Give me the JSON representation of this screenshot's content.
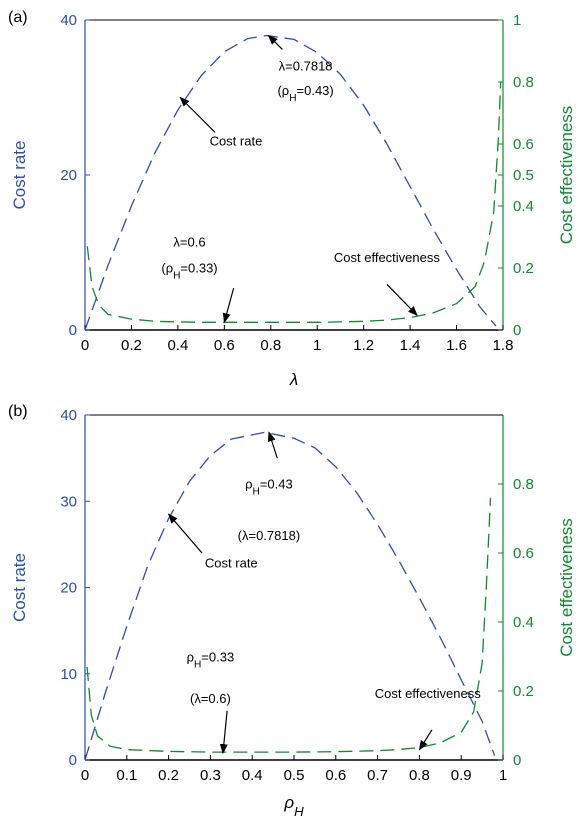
{
  "colors": {
    "left_axis": "#2e4ea8",
    "right_axis": "#0f8a2e",
    "frame": "#000000",
    "bottom_axis": "#000000"
  },
  "chart_data": [
    {
      "panel": "(a)",
      "type": "line",
      "grid": false,
      "xlabel": "λ",
      "ylabel": "Cost rate",
      "y2label": "Cost effectiveness",
      "xlim": [
        0,
        1.8
      ],
      "ylim": [
        0,
        40
      ],
      "y2lim": [
        0,
        1
      ],
      "xticks": [
        "0",
        "0.2",
        "0.4",
        "0.6",
        "0.8",
        "1",
        "1.2",
        "1.4",
        "1.6",
        "1.8"
      ],
      "xtick_values": [
        0,
        0.2,
        0.4,
        0.6,
        0.8,
        1,
        1.2,
        1.4,
        1.6,
        1.8
      ],
      "yticks": [
        "0",
        "20",
        "40"
      ],
      "ytick_values": [
        0,
        20,
        40
      ],
      "y2ticks": [
        "0",
        "0.2",
        "0.4",
        "0.5",
        "0.6",
        "0.8",
        "1"
      ],
      "y2tick_values": [
        0,
        0.2,
        0.4,
        0.5,
        0.6,
        0.8,
        1
      ],
      "series": [
        {
          "name": "Cost rate",
          "axis": "left",
          "color": "#2e4ea8",
          "style": "dashed",
          "x": [
            0,
            0.1,
            0.2,
            0.3,
            0.4,
            0.5,
            0.6,
            0.7,
            0.7818,
            0.9,
            1.0,
            1.1,
            1.2,
            1.3,
            1.4,
            1.5,
            1.6,
            1.7,
            1.77
          ],
          "y": [
            0,
            8.4,
            16.0,
            22.8,
            28.4,
            32.8,
            35.9,
            37.6,
            38.0,
            37.5,
            35.8,
            33.0,
            29.0,
            24.0,
            18.5,
            13.0,
            7.8,
            3.0,
            0.5
          ]
        },
        {
          "name": "Cost effectiveness",
          "axis": "right",
          "color": "#0f8a2e",
          "style": "dashed",
          "x": [
            0.01,
            0.03,
            0.06,
            0.1,
            0.2,
            0.3,
            0.4,
            0.5,
            0.6,
            0.7,
            0.8,
            0.9,
            1.0,
            1.1,
            1.2,
            1.3,
            1.4,
            1.5,
            1.6,
            1.68,
            1.72,
            1.76,
            1.78,
            1.79
          ],
          "y": [
            0.27,
            0.14,
            0.08,
            0.05,
            0.035,
            0.028,
            0.026,
            0.025,
            0.025,
            0.025,
            0.025,
            0.025,
            0.025,
            0.026,
            0.028,
            0.032,
            0.04,
            0.055,
            0.085,
            0.14,
            0.22,
            0.38,
            0.62,
            0.8
          ]
        }
      ],
      "annotations": [
        {
          "lines": [
            "λ=0.7818",
            "(ρ_H=0.43)"
          ],
          "text_x": 0.95,
          "text_y": 33.5,
          "text_y2": 30.3,
          "arrow_from": [
            0.85,
            36.2
          ],
          "arrow_to": [
            0.79,
            38.0
          ],
          "axis": "left"
        },
        {
          "lines": [
            "Cost rate"
          ],
          "text_x": 0.65,
          "text_y": 23.8,
          "arrow_from": [
            0.56,
            25.5
          ],
          "arrow_to": [
            0.41,
            30.0
          ],
          "axis": "left"
        },
        {
          "lines": [
            "λ=0.6",
            "(ρ_H=0.33)"
          ],
          "text_x": 0.45,
          "text_y": 10.8,
          "text_y2": 7.4,
          "arrow_from": [
            0.64,
            5.4
          ],
          "arrow_to": [
            0.6,
            1.0
          ],
          "axis": "left"
        },
        {
          "lines": [
            "Cost effectiveness"
          ],
          "text_x": 1.3,
          "text_y": 8.8,
          "arrow_from": [
            1.3,
            5.9
          ],
          "arrow_to": [
            1.43,
            1.9
          ],
          "axis": "left"
        }
      ]
    },
    {
      "panel": "(b)",
      "type": "line",
      "grid": false,
      "xlabel": "ρ_H",
      "ylabel": "Cost rate",
      "y2label": "Cost effectiveness",
      "xlim": [
        0,
        1
      ],
      "ylim": [
        0,
        40
      ],
      "y2lim": [
        0,
        1
      ],
      "xticks": [
        "0",
        "0.1",
        "0.2",
        "0.3",
        "0.4",
        "0.5",
        "0.6",
        "0.7",
        "0.8",
        "0.9",
        "1"
      ],
      "xtick_values": [
        0,
        0.1,
        0.2,
        0.3,
        0.4,
        0.5,
        0.6,
        0.7,
        0.8,
        0.9,
        1
      ],
      "yticks": [
        "0",
        "10",
        "20",
        "30",
        "40"
      ],
      "ytick_values": [
        0,
        10,
        20,
        30,
        40
      ],
      "y2ticks": [
        "0",
        "0.2",
        "0.4",
        "0.6",
        "0.8"
      ],
      "y2tick_values": [
        0,
        0.2,
        0.4,
        0.6,
        0.8
      ],
      "series": [
        {
          "name": "Cost rate",
          "axis": "left",
          "color": "#2e4ea8",
          "style": "dashed",
          "x": [
            0,
            0.05,
            0.1,
            0.15,
            0.2,
            0.25,
            0.3,
            0.35,
            0.43,
            0.5,
            0.55,
            0.6,
            0.65,
            0.7,
            0.75,
            0.8,
            0.85,
            0.9,
            0.95,
            0.98
          ],
          "y": [
            0,
            8.0,
            15.5,
            22.5,
            28.0,
            32.3,
            35.3,
            37.2,
            38.0,
            37.3,
            36.2,
            34.0,
            31.0,
            27.3,
            23.2,
            18.8,
            14.2,
            9.3,
            4.5,
            0.5
          ]
        },
        {
          "name": "Cost effectiveness",
          "axis": "right",
          "color": "#0f8a2e",
          "style": "dashed",
          "x": [
            0.005,
            0.015,
            0.03,
            0.06,
            0.1,
            0.2,
            0.3,
            0.4,
            0.5,
            0.6,
            0.7,
            0.75,
            0.8,
            0.85,
            0.9,
            0.93,
            0.95,
            0.96,
            0.97
          ],
          "y": [
            0.27,
            0.13,
            0.07,
            0.04,
            0.03,
            0.025,
            0.023,
            0.023,
            0.023,
            0.024,
            0.027,
            0.03,
            0.036,
            0.05,
            0.08,
            0.14,
            0.28,
            0.5,
            0.76
          ]
        }
      ],
      "annotations": [
        {
          "lines": [
            "ρ_H=0.43",
            "(λ=0.7818)"
          ],
          "text_x": 0.44,
          "text_y": 31.5,
          "text_y2": 25.5,
          "arrow_from": [
            0.46,
            35.0
          ],
          "arrow_to": [
            0.44,
            38.0
          ],
          "axis": "left"
        },
        {
          "lines": [
            "Cost rate"
          ],
          "text_x": 0.35,
          "text_y": 22.3,
          "arrow_from": [
            0.28,
            24.0
          ],
          "arrow_to": [
            0.2,
            28.5
          ],
          "axis": "left"
        },
        {
          "lines": [
            "ρ_H=0.33",
            "(λ=0.6)"
          ],
          "text_x": 0.3,
          "text_y": 11.4,
          "text_y2": 6.6,
          "arrow_from": [
            0.34,
            5.7
          ],
          "arrow_to": [
            0.33,
            0.8
          ],
          "axis": "left"
        },
        {
          "lines": [
            "Cost effectiveness"
          ],
          "text_x": 0.82,
          "text_y": 7.2,
          "arrow_from": [
            0.83,
            3.5
          ],
          "arrow_to": [
            0.8,
            1.2
          ],
          "axis": "left"
        }
      ]
    }
  ]
}
